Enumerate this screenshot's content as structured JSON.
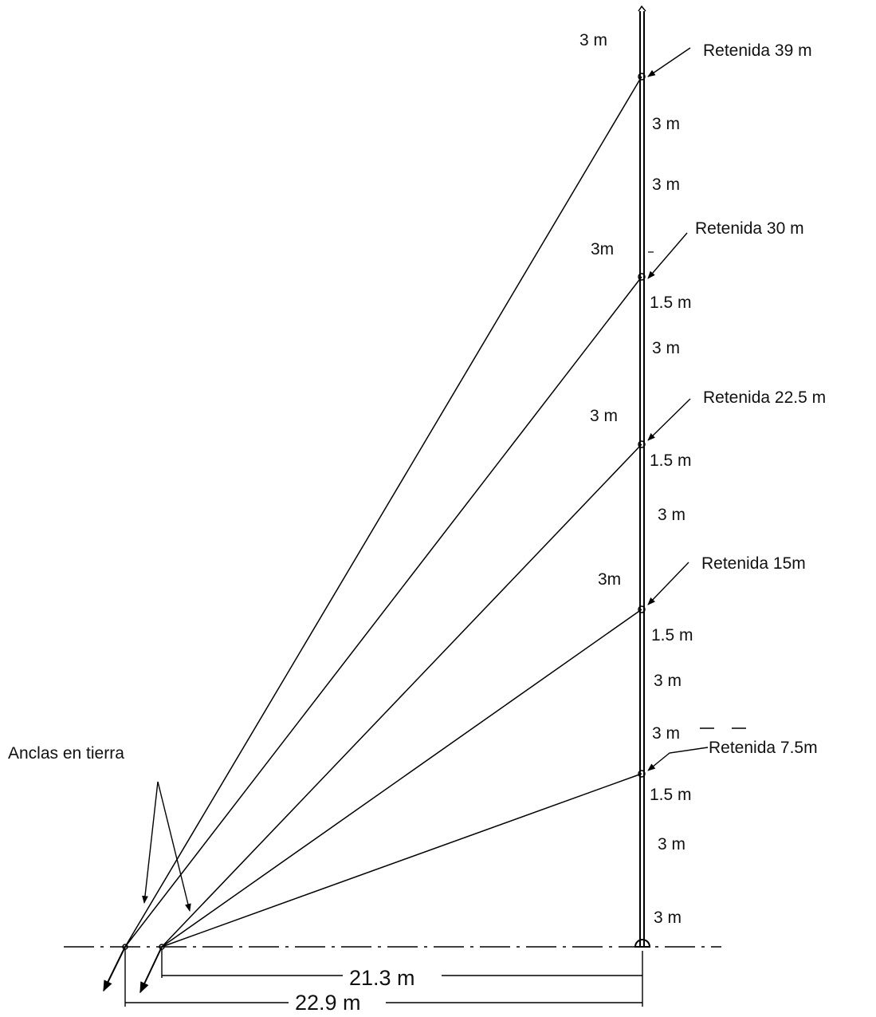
{
  "labels": {
    "anchors": "Anclas en tierra",
    "guy_39": "Retenida 39 m",
    "guy_30": "Retenida 30 m",
    "guy_22_5": "Retenida 22.5 m",
    "guy_15": "Retenida 15m",
    "guy_7_5": "Retenida 7.5m",
    "dim_21_3": "21.3 m",
    "dim_22_9": "22.9 m"
  },
  "segments": {
    "top_3m": "3 m",
    "s1": "3 m",
    "s2": "3 m",
    "s3_left": "3m",
    "s4": "1.5 m",
    "s5": "3 m",
    "s6_left": "3 m",
    "s7": "1.5 m",
    "s8": "3 m",
    "s9_left": "3m",
    "s10": "1.5 m",
    "s11": "3 m",
    "s12": "3 m",
    "s13": "1.5 m",
    "s14": "3 m",
    "s15": "3 m"
  }
}
